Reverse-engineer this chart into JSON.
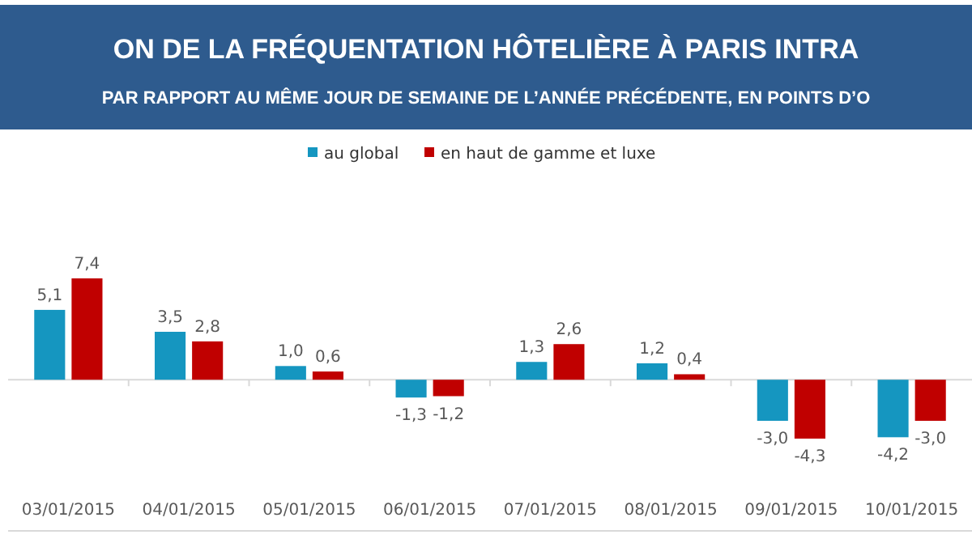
{
  "chart_data": {
    "type": "bar",
    "title": "ON DE LA FRÉQUENTATION HÔTELIÈRE À PARIS INTRA",
    "subtitle": "PAR RAPPORT AU MÊME JOUR DE SEMAINE DE L’ANNÉE PRÉCÉDENTE, EN POINTS D’O",
    "categories": [
      "03/01/2015",
      "04/01/2015",
      "05/01/2015",
      "06/01/2015",
      "07/01/2015",
      "08/01/2015",
      "09/01/2015",
      "10/01/2015"
    ],
    "series": [
      {
        "name": "au global",
        "color": "#1596c0",
        "values": [
          5.1,
          3.5,
          1.0,
          -1.3,
          1.3,
          1.2,
          -3.0,
          -4.2
        ],
        "value_labels": [
          "5,1",
          "3,5",
          "1,0",
          "-1,3",
          "1,3",
          "1,2",
          "-3,0",
          "-4,2"
        ]
      },
      {
        "name": "en haut de gamme et luxe",
        "color": "#c00000",
        "values": [
          7.4,
          2.8,
          0.6,
          -1.2,
          2.6,
          0.4,
          -4.3,
          -3.0
        ],
        "value_labels": [
          "7,4",
          "2,8",
          "0,6",
          "-1,2",
          "2,6",
          "0,4",
          "-4,3",
          "-3,0"
        ]
      }
    ],
    "legend": "top"
  }
}
